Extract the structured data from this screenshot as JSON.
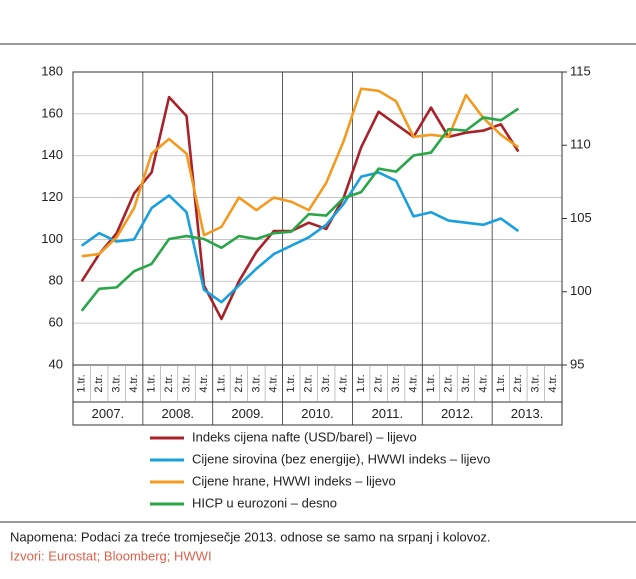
{
  "chart_data": {
    "type": "line",
    "categories": [
      "1.tr.",
      "2.tr.",
      "3.tr.",
      "4.tr.",
      "1.tr.",
      "2.tr.",
      "3.tr.",
      "4.tr.",
      "1.tr.",
      "2.tr.",
      "3.tr.",
      "4.tr.",
      "1.tr.",
      "2.tr.",
      "3.tr.",
      "4.tr.",
      "1.tr.",
      "2.tr.",
      "3.tr.",
      "4.tr.",
      "1.tr.",
      "2.tr.",
      "3.tr.",
      "4.tr.",
      "1.tr.",
      "2.tr.",
      "3.tr.",
      "4.tr."
    ],
    "years": [
      "2007.",
      "2008.",
      "2009.",
      "2010.",
      "2011.",
      "2012.",
      "2013."
    ],
    "ylim": [
      40,
      180
    ],
    "yticks": [
      40,
      60,
      80,
      100,
      120,
      140,
      160,
      180
    ],
    "y2lim": [
      95,
      115
    ],
    "y2ticks": [
      95,
      100,
      105,
      110,
      115
    ],
    "grid": true,
    "series": [
      {
        "name": "Indeks cijena nafte (USD/barel) – lijevo",
        "color": "#a8222a",
        "values": [
          80,
          93,
          103,
          122,
          132,
          168,
          159,
          78,
          62,
          80,
          94,
          104,
          104,
          108,
          105,
          120,
          144,
          161,
          155,
          149,
          163,
          149,
          151,
          152,
          155,
          142,
          null,
          null
        ]
      },
      {
        "name": "Cijene sirovina (bez energije), HWWI indeks – lijevo",
        "color": "#1aa0dc",
        "values": [
          97,
          103,
          99,
          100,
          115,
          121,
          113,
          76,
          70,
          78,
          86,
          93,
          97,
          101,
          107,
          117,
          130,
          132,
          128,
          111,
          113,
          109,
          108,
          107,
          110,
          104,
          null,
          null
        ]
      },
      {
        "name": "Cijene hrane, HWWI indeks – lijevo",
        "color": "#f29b20",
        "values": [
          92,
          93,
          101,
          115,
          141,
          148,
          141,
          102,
          106,
          120,
          114,
          120,
          118,
          114,
          127,
          147,
          172,
          171,
          166,
          149,
          150,
          149,
          169,
          158,
          150,
          144,
          null,
          null
        ]
      },
      {
        "name": "HICP u eurozoni – desno",
        "color": "#2aa648",
        "axis": "y2",
        "values": [
          98.7,
          100.2,
          100.3,
          101.4,
          101.9,
          103.6,
          103.8,
          103.6,
          103.0,
          103.8,
          103.6,
          104.0,
          104.1,
          105.3,
          105.2,
          106.4,
          106.8,
          108.4,
          108.2,
          109.3,
          109.5,
          111.1,
          111.0,
          111.9,
          111.7,
          112.5,
          null,
          null
        ]
      }
    ],
    "note": "Napomena: Podaci za treće tromjesečje 2013. odnose se samo na srpanj i kolovoz.",
    "source": "Izvori: Eurostat; Bloomberg; HWWI"
  }
}
